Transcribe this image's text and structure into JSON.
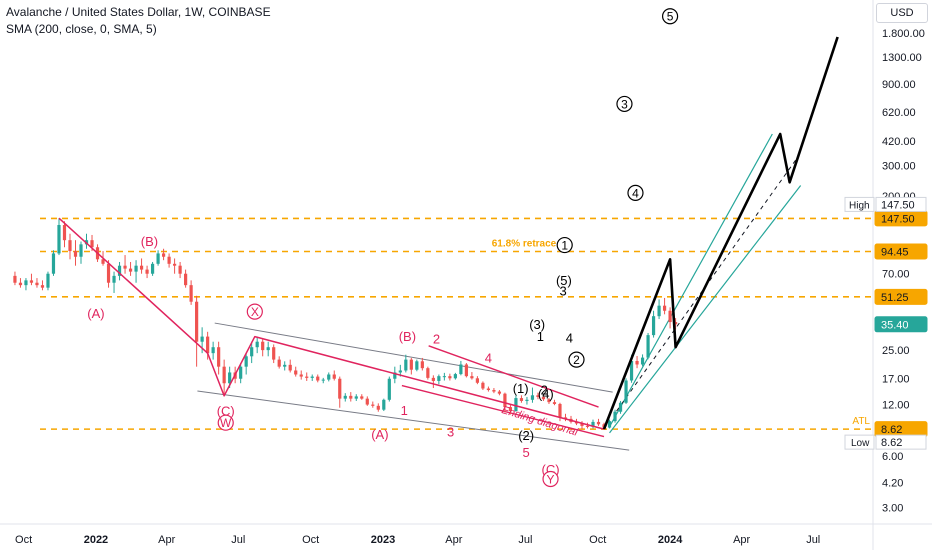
{
  "header": {
    "title": "Avalanche / United States Dollar, 1W, COINBASE",
    "indicator": "SMA (200, close, 0, SMA, 5)",
    "currency": "USD"
  },
  "chart_data": {
    "type": "candlestick",
    "y_scale": "log",
    "ylim": [
      2.4,
      2800
    ],
    "xlim": [
      "2021-09-01",
      "2024-09-15"
    ],
    "y_ticks": [
      1800,
      1300,
      900,
      620,
      420,
      300,
      200,
      70,
      25,
      17,
      12,
      6,
      4.2,
      3
    ],
    "y_tick_labels": [
      "1.800.00",
      "1300.00",
      "900.00",
      "620.00",
      "420.00",
      "300.00",
      "200.00",
      "70.00",
      "25.00",
      "17.00",
      "12.00",
      "6.00",
      "4.20",
      "3.00"
    ],
    "x_ticks": [
      {
        "date": "2021-10-01",
        "label": "Oct",
        "bold": false
      },
      {
        "date": "2022-01-01",
        "label": "2022",
        "bold": true
      },
      {
        "date": "2022-04-01",
        "label": "Apr",
        "bold": false
      },
      {
        "date": "2022-07-01",
        "label": "Jul",
        "bold": false
      },
      {
        "date": "2022-10-01",
        "label": "Oct",
        "bold": false
      },
      {
        "date": "2023-01-01",
        "label": "2023",
        "bold": true
      },
      {
        "date": "2023-04-01",
        "label": "Apr",
        "bold": false
      },
      {
        "date": "2023-07-01",
        "label": "Jul",
        "bold": false
      },
      {
        "date": "2023-10-01",
        "label": "Oct",
        "bold": false
      },
      {
        "date": "2024-01-01",
        "label": "2024",
        "bold": true
      },
      {
        "date": "2024-04-01",
        "label": "Apr",
        "bold": false
      },
      {
        "date": "2024-07-01",
        "label": "Jul",
        "bold": false
      }
    ],
    "price_levels": [
      {
        "value": 147.5,
        "label": "147.50",
        "tag": "High"
      },
      {
        "value": 94.45,
        "label": "94.45",
        "tag": ""
      },
      {
        "value": 51.25,
        "label": "51.25",
        "tag": ""
      },
      {
        "value": 8.62,
        "label": "8.62",
        "tag": "ATL"
      }
    ],
    "last_price": {
      "value": 35.4,
      "label": "35.40"
    },
    "extremes": {
      "high": {
        "tag": "High",
        "label": "147.50"
      },
      "low": {
        "tag": "Low",
        "label": "8.62"
      }
    },
    "retrace_label": "61.8% retrace",
    "annotation_text": "Ending diagonal",
    "candles": [
      [
        "2021-09-20",
        68,
        72,
        60,
        62
      ],
      [
        "2021-09-27",
        62,
        66,
        58,
        60
      ],
      [
        "2021-10-04",
        60,
        66,
        56,
        64
      ],
      [
        "2021-10-11",
        64,
        70,
        60,
        62
      ],
      [
        "2021-10-18",
        62,
        66,
        58,
        60
      ],
      [
        "2021-10-25",
        60,
        64,
        56,
        58
      ],
      [
        "2021-11-01",
        58,
        72,
        56,
        70
      ],
      [
        "2021-11-08",
        70,
        96,
        68,
        92
      ],
      [
        "2021-11-15",
        92,
        148,
        90,
        135
      ],
      [
        "2021-11-22",
        135,
        142,
        100,
        110
      ],
      [
        "2021-11-29",
        110,
        120,
        85,
        95
      ],
      [
        "2021-12-06",
        95,
        110,
        78,
        88
      ],
      [
        "2021-12-13",
        88,
        108,
        80,
        104
      ],
      [
        "2021-12-20",
        104,
        120,
        98,
        110
      ],
      [
        "2021-12-27",
        110,
        118,
        95,
        100
      ],
      [
        "2022-01-03",
        100,
        104,
        82,
        85
      ],
      [
        "2022-01-10",
        85,
        95,
        78,
        80
      ],
      [
        "2022-01-17",
        80,
        84,
        58,
        62
      ],
      [
        "2022-01-24",
        62,
        72,
        54,
        68
      ],
      [
        "2022-01-31",
        68,
        82,
        64,
        78
      ],
      [
        "2022-02-07",
        78,
        90,
        70,
        75
      ],
      [
        "2022-02-14",
        75,
        82,
        68,
        72
      ],
      [
        "2022-02-21",
        72,
        84,
        62,
        78
      ],
      [
        "2022-02-28",
        78,
        86,
        70,
        74
      ],
      [
        "2022-03-07",
        74,
        78,
        66,
        70
      ],
      [
        "2022-03-14",
        70,
        82,
        68,
        80
      ],
      [
        "2022-03-21",
        80,
        96,
        78,
        92
      ],
      [
        "2022-03-28",
        92,
        98,
        84,
        88
      ],
      [
        "2022-04-04",
        88,
        92,
        76,
        80
      ],
      [
        "2022-04-11",
        80,
        86,
        70,
        78
      ],
      [
        "2022-04-18",
        78,
        82,
        66,
        70
      ],
      [
        "2022-04-25",
        70,
        74,
        58,
        60
      ],
      [
        "2022-05-02",
        60,
        64,
        46,
        48
      ],
      [
        "2022-05-09",
        48,
        52,
        20,
        28
      ],
      [
        "2022-05-16",
        28,
        34,
        24,
        30
      ],
      [
        "2022-05-23",
        30,
        32,
        22,
        24
      ],
      [
        "2022-05-30",
        24,
        28,
        22,
        26
      ],
      [
        "2022-06-06",
        26,
        28,
        18,
        20
      ],
      [
        "2022-06-13",
        20,
        22,
        13.5,
        16
      ],
      [
        "2022-06-20",
        16,
        20,
        15,
        18.5
      ],
      [
        "2022-06-27",
        18.5,
        20,
        16,
        17
      ],
      [
        "2022-07-04",
        17,
        21,
        16,
        20
      ],
      [
        "2022-07-11",
        20,
        24,
        18,
        23
      ],
      [
        "2022-07-18",
        23,
        28,
        21,
        26
      ],
      [
        "2022-07-25",
        26,
        30,
        24,
        28
      ],
      [
        "2022-08-01",
        28,
        29,
        23,
        25
      ],
      [
        "2022-08-08",
        25,
        28,
        23,
        26
      ],
      [
        "2022-08-15",
        26,
        27,
        21,
        22
      ],
      [
        "2022-08-22",
        22,
        23,
        19.5,
        20
      ],
      [
        "2022-08-29",
        20,
        21.5,
        19,
        20.5
      ],
      [
        "2022-09-05",
        20.5,
        22,
        18.5,
        19
      ],
      [
        "2022-09-12",
        19,
        20,
        17.5,
        18
      ],
      [
        "2022-09-19",
        18,
        19,
        16.8,
        17.5
      ],
      [
        "2022-09-26",
        17.5,
        18.5,
        16.5,
        17.2
      ],
      [
        "2022-10-03",
        17.2,
        18,
        16.5,
        17.5
      ],
      [
        "2022-10-10",
        17.5,
        18,
        16.2,
        16.6
      ],
      [
        "2022-10-17",
        16.6,
        17.2,
        16,
        16.8
      ],
      [
        "2022-10-24",
        16.8,
        18.5,
        16.4,
        18
      ],
      [
        "2022-10-31",
        18,
        19,
        16.6,
        17
      ],
      [
        "2022-11-07",
        17,
        17.5,
        11.5,
        13
      ],
      [
        "2022-11-14",
        13,
        14,
        12.5,
        13.5
      ],
      [
        "2022-11-21",
        13.5,
        14.2,
        12.5,
        13
      ],
      [
        "2022-11-28",
        13,
        13.8,
        12.6,
        13.4
      ],
      [
        "2022-12-05",
        13.4,
        13.8,
        12.8,
        13
      ],
      [
        "2022-12-12",
        13,
        13.4,
        11.8,
        12
      ],
      [
        "2022-12-19",
        12,
        12.5,
        11.5,
        11.8
      ],
      [
        "2022-12-26",
        11.8,
        12.2,
        10.9,
        11.2
      ],
      [
        "2023-01-02",
        11.2,
        13,
        11,
        12.8
      ],
      [
        "2023-01-09",
        12.8,
        17.5,
        12.5,
        17
      ],
      [
        "2023-01-16",
        17,
        20,
        16,
        18.5
      ],
      [
        "2023-01-23",
        18.5,
        20.5,
        17.5,
        19
      ],
      [
        "2023-01-30",
        19,
        23.5,
        18.5,
        22
      ],
      [
        "2023-02-06",
        22,
        22.5,
        18,
        19.2
      ],
      [
        "2023-02-13",
        19.2,
        22,
        18.8,
        21.5
      ],
      [
        "2023-02-20",
        21.5,
        22.5,
        19,
        19.6
      ],
      [
        "2023-02-27",
        19.6,
        20,
        16.8,
        17.2
      ],
      [
        "2023-03-06",
        17.2,
        17.8,
        15,
        16.5
      ],
      [
        "2023-03-13",
        16.5,
        18,
        15.8,
        17.6
      ],
      [
        "2023-03-20",
        17.6,
        18.4,
        16.6,
        17.6
      ],
      [
        "2023-03-27",
        17.6,
        18.2,
        16.6,
        17.1
      ],
      [
        "2023-04-03",
        17.1,
        18.4,
        16.8,
        18.1
      ],
      [
        "2023-04-10",
        18.1,
        21.6,
        17.8,
        20.6
      ],
      [
        "2023-04-17",
        20.6,
        21,
        17.3,
        17.6
      ],
      [
        "2023-04-24",
        17.6,
        18.6,
        16.8,
        17.1
      ],
      [
        "2023-05-01",
        17.1,
        17.6,
        15.8,
        16.1
      ],
      [
        "2023-05-08",
        16.1,
        16.4,
        14.6,
        14.9
      ],
      [
        "2023-05-15",
        14.9,
        15.3,
        14.3,
        14.6
      ],
      [
        "2023-05-22",
        14.6,
        15,
        14,
        14.3
      ],
      [
        "2023-05-29",
        14.3,
        14.6,
        13.6,
        13.9
      ],
      [
        "2023-06-05",
        13.9,
        14.1,
        10.8,
        11.6
      ],
      [
        "2023-06-12",
        11.6,
        12.1,
        10.5,
        11
      ],
      [
        "2023-06-19",
        11,
        13.6,
        10.9,
        13.1
      ],
      [
        "2023-06-26",
        13.1,
        13.6,
        12.3,
        12.6
      ],
      [
        "2023-07-03",
        12.6,
        13.3,
        12,
        12.8
      ],
      [
        "2023-07-10",
        12.8,
        15.1,
        12.3,
        13.6
      ],
      [
        "2023-07-17",
        13.6,
        14.1,
        12.9,
        13.3
      ],
      [
        "2023-07-24",
        13.3,
        13.6,
        12.6,
        12.9
      ],
      [
        "2023-07-31",
        12.9,
        13.1,
        12.1,
        12.4
      ],
      [
        "2023-08-07",
        12.4,
        12.8,
        11.9,
        12.1
      ],
      [
        "2023-08-14",
        12.1,
        12.3,
        9.6,
        10.1
      ],
      [
        "2023-08-21",
        10.1,
        10.6,
        9.6,
        9.9
      ],
      [
        "2023-08-28",
        9.9,
        10.3,
        9.3,
        9.5
      ],
      [
        "2023-09-04",
        9.5,
        9.9,
        9.1,
        9.3
      ],
      [
        "2023-09-11",
        9.3,
        9.6,
        8.6,
        9.0
      ],
      [
        "2023-09-18",
        9.0,
        9.4,
        8.7,
        8.9
      ],
      [
        "2023-09-25",
        8.9,
        9.8,
        8.7,
        9.5
      ],
      [
        "2023-10-02",
        9.5,
        9.9,
        9.0,
        9.2
      ],
      [
        "2023-10-09",
        9.2,
        9.4,
        8.62,
        8.8
      ],
      [
        "2023-10-16",
        8.8,
        9.8,
        8.7,
        9.6
      ],
      [
        "2023-10-23",
        9.6,
        11.2,
        9.4,
        10.9
      ],
      [
        "2023-10-30",
        10.9,
        12.6,
        10.6,
        12.3
      ],
      [
        "2023-11-06",
        12.3,
        17.1,
        12.1,
        16.6
      ],
      [
        "2023-11-13",
        16.6,
        23.5,
        16.1,
        21.6
      ],
      [
        "2023-11-20",
        21.6,
        23.1,
        19.6,
        20.6
      ],
      [
        "2023-11-27",
        20.6,
        23.6,
        20.1,
        22.6
      ],
      [
        "2023-12-04",
        22.6,
        31.5,
        22.1,
        30.6
      ],
      [
        "2023-12-11",
        30.6,
        42.5,
        29.6,
        39.5
      ],
      [
        "2023-12-18",
        39.5,
        49.5,
        38.0,
        45.5
      ],
      [
        "2023-12-25",
        45.5,
        50.5,
        40.5,
        42.5
      ],
      [
        "2024-01-01",
        42.5,
        44.5,
        33.5,
        36.5
      ],
      [
        "2024-01-08",
        36.5,
        38.5,
        33.0,
        35.4
      ]
    ],
    "sma_series": {
      "name": "SMA (200, close, 0, SMA, 5)",
      "points": [
        [
          "2023-10-09",
          9.2
        ],
        [
          "2023-10-23",
          10.5
        ],
        [
          "2023-11-06",
          12.2
        ],
        [
          "2023-11-20",
          15.0
        ],
        [
          "2023-12-04",
          20.0
        ],
        [
          "2023-12-18",
          26.5
        ],
        [
          "2024-01-08",
          31.0
        ]
      ]
    },
    "wave_labels_red": [
      {
        "text": "(B)",
        "date": "2022-03-10",
        "price": 108
      },
      {
        "text": "(A)",
        "date": "2022-01-01",
        "price": 41
      },
      {
        "text": "(C)",
        "date": "2022-06-15",
        "price": 11
      },
      {
        "text": "W",
        "date": "2022-06-15",
        "price": 9.4,
        "circled": true
      },
      {
        "text": "X",
        "date": "2022-07-22",
        "price": 42,
        "circled": true
      },
      {
        "text": "(B)",
        "date": "2023-02-01",
        "price": 30
      },
      {
        "text": "(A)",
        "date": "2022-12-28",
        "price": 8.0
      },
      {
        "text": "1",
        "date": "2023-01-28",
        "price": 11.1
      },
      {
        "text": "2",
        "date": "2023-03-10",
        "price": 29
      },
      {
        "text": "3",
        "date": "2023-03-28",
        "price": 8.3
      },
      {
        "text": "4",
        "date": "2023-05-15",
        "price": 22.5
      },
      {
        "text": "5",
        "date": "2023-07-02",
        "price": 6.3
      },
      {
        "text": "(C)",
        "date": "2023-08-02",
        "price": 5.0
      },
      {
        "text": "Y",
        "date": "2023-08-02",
        "price": 4.4,
        "circled": true
      }
    ],
    "wave_labels_black": [
      {
        "text": "(1)",
        "date": "2023-06-25",
        "price": 14.9
      },
      {
        "text": "(2)",
        "date": "2023-07-02",
        "price": 7.9
      },
      {
        "text": "2",
        "date": "2023-07-25",
        "price": 14.6
      },
      {
        "text": "(4)",
        "date": "2023-07-27",
        "price": 13.8
      },
      {
        "text": "1",
        "date": "2023-07-20",
        "price": 30
      },
      {
        "text": "(3)",
        "date": "2023-07-16",
        "price": 35.2
      },
      {
        "text": "4",
        "date": "2023-08-26",
        "price": 29.5
      },
      {
        "text": "3",
        "date": "2023-08-18",
        "price": 55.3
      },
      {
        "text": "(5)",
        "date": "2023-08-19",
        "price": 64
      },
      {
        "text": "1",
        "date": "2023-08-20",
        "price": 103,
        "circled": true
      },
      {
        "text": "2",
        "date": "2023-09-04",
        "price": 22,
        "circled": true
      },
      {
        "text": "3",
        "date": "2023-11-04",
        "price": 690,
        "circled": true
      },
      {
        "text": "4",
        "date": "2023-11-18",
        "price": 208,
        "circled": true
      },
      {
        "text": "5",
        "date": "2024-01-01",
        "price": 2250,
        "circled": true
      }
    ],
    "wave_path_red": [
      [
        "2021-11-15",
        148
      ],
      [
        "2022-05-23",
        24
      ],
      [
        "2022-06-13",
        13.5
      ],
      [
        "2022-07-22",
        30
      ],
      [
        "2023-10-09",
        8.62
      ]
    ],
    "wave_path_black": [
      [
        "2023-10-09",
        8.62
      ],
      [
        "2024-01-01",
        85
      ],
      [
        "2024-01-08",
        26
      ],
      [
        "2024-05-20",
        460
      ],
      [
        "2024-06-01",
        240
      ],
      [
        "2024-08-01",
        1700
      ]
    ]
  }
}
